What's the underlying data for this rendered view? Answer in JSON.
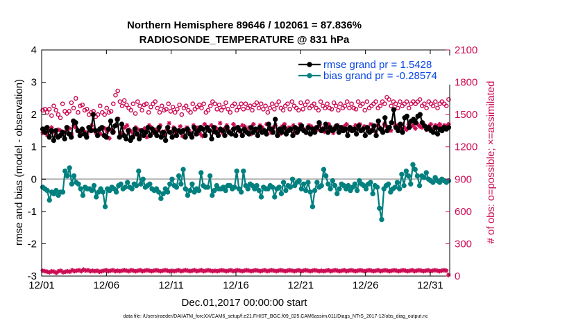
{
  "chart_data": {
    "type": "line",
    "title_line1": "Northern Hemisphere 89646 / 102061 = 87.836%",
    "title_line2": "RADIOSONDE_TEMPERATURE @ 831 hPa",
    "xlabel": "Dec.01,2017 00:00:00 start",
    "ylabel_left": "rmse and bias (model - observation)",
    "ylabel_right": "# of obs: o=possible; ×=assimilated",
    "footnote": "data file: /Users/raeder/DAI/ATM_forcXX/CAM6_setup/f.e21.FHIST_BGC.f09_025.CAM6assim.011/Diags_NTrS_2017-12/obs_diag_output.nc",
    "xlim": [
      0,
      31.5
    ],
    "ylim_left": [
      -3,
      4
    ],
    "ylim_right": [
      0,
      2100
    ],
    "x_tick_values": [
      0,
      5,
      10,
      15,
      20,
      25,
      30
    ],
    "x_tick_labels": [
      "12/01",
      "12/06",
      "12/11",
      "12/16",
      "12/21",
      "12/26",
      "12/31"
    ],
    "y_left_ticks": [
      "-3",
      "-2",
      "-1",
      "0",
      "1",
      "2",
      "3",
      "4"
    ],
    "y_right_ticks": [
      "0",
      "300",
      "600",
      "900",
      "1200",
      "1500",
      "1800",
      "2100"
    ],
    "colors": {
      "rmse": "#000000",
      "bias": "#00807f",
      "obs": "#cc0a52",
      "zero_line": "#b3b3b3",
      "legend_text": "#0a46e6"
    },
    "series": [
      {
        "name": "rmse grand pr = 1.5428",
        "axis": "left",
        "marker": "filled-circle",
        "values": [
          1.55,
          1.45,
          1.6,
          1.3,
          1.5,
          1.2,
          1.5,
          1.3,
          1.35,
          1.45,
          1.25,
          1.6,
          1.4,
          1.3,
          1.8,
          1.75,
          1.5,
          1.35,
          1.55,
          1.4,
          1.3,
          1.6,
          1.5,
          2.0,
          1.5,
          1.35,
          1.55,
          1.6,
          1.35,
          1.3,
          1.55,
          1.8,
          1.45,
          1.65,
          1.85,
          1.3,
          1.7,
          1.35,
          1.25,
          1.5,
          1.2,
          1.3,
          1.55,
          1.4,
          1.25,
          1.5,
          1.35,
          1.45,
          1.6,
          1.35,
          1.55,
          1.45,
          1.35,
          1.6,
          1.3,
          1.45,
          1.2,
          1.6,
          1.45,
          1.3,
          1.55,
          1.35,
          1.5,
          1.45,
          1.5,
          1.3,
          1.55,
          1.4,
          1.3,
          1.6,
          1.4,
          1.5,
          1.6,
          1.55,
          1.35,
          1.6,
          1.5,
          1.25,
          1.6,
          1.45,
          1.35,
          1.55,
          1.5,
          1.35,
          1.6,
          1.45,
          1.4,
          1.55,
          1.35,
          1.6,
          1.5,
          1.35,
          1.55,
          1.45,
          1.4,
          1.6,
          1.45,
          1.55,
          1.35,
          1.6,
          1.45,
          1.5,
          1.4,
          1.7,
          1.55,
          1.45,
          1.85,
          1.35,
          1.55,
          1.45,
          1.6,
          1.4,
          1.5,
          1.55,
          1.35,
          1.6,
          1.45,
          1.55,
          1.65,
          1.5,
          1.45,
          1.6,
          1.4,
          1.55,
          1.45,
          1.6,
          1.75,
          1.5,
          1.55,
          1.7,
          1.45,
          1.6,
          1.5,
          1.55,
          1.65,
          1.45,
          1.6,
          1.5,
          1.55,
          1.35,
          1.6,
          1.5,
          1.55,
          1.4,
          1.65,
          1.5,
          1.55,
          1.35,
          1.6,
          1.45,
          1.5,
          1.65,
          1.35,
          1.8,
          1.55,
          1.45,
          1.9,
          1.5,
          1.6,
          1.75,
          2.15,
          1.6,
          1.5,
          1.7,
          1.45,
          1.9,
          1.95,
          1.6,
          1.8,
          1.85,
          1.75,
          1.95,
          2.0,
          1.75,
          1.65,
          1.55,
          1.6,
          1.5,
          1.45,
          1.6,
          1.4,
          1.55,
          1.5,
          1.6,
          1.55,
          1.6
        ]
      },
      {
        "name": "bias grand pr = -0.28574",
        "axis": "left",
        "marker": "filled-circle",
        "values": [
          -0.25,
          -0.3,
          -0.35,
          -0.65,
          -0.4,
          -0.45,
          -0.35,
          -0.5,
          -0.4,
          -0.4,
          0.25,
          0.1,
          0.35,
          -0.15,
          0.1,
          -0.1,
          -0.15,
          -0.3,
          -0.5,
          -0.25,
          -0.3,
          -0.3,
          -0.35,
          -0.2,
          -0.55,
          -0.4,
          -0.3,
          -0.4,
          -0.85,
          -0.3,
          -0.35,
          -0.25,
          -0.3,
          -0.4,
          -0.2,
          -0.15,
          -0.3,
          -0.25,
          -0.1,
          -0.25,
          -0.3,
          -0.15,
          -0.2,
          0.25,
          -0.15,
          0.0,
          -0.25,
          -0.2,
          -0.15,
          -0.3,
          -0.35,
          -0.3,
          -0.4,
          -0.6,
          -0.45,
          -0.3,
          -0.4,
          -0.15,
          0.0,
          -0.2,
          -0.25,
          0.1,
          -0.15,
          0.3,
          -0.3,
          -0.5,
          -0.35,
          -0.15,
          -0.4,
          -0.3,
          -0.35,
          0.2,
          -0.2,
          -0.25,
          -0.25,
          0.1,
          -0.5,
          -0.35,
          -0.2,
          -0.3,
          -0.3,
          -0.25,
          -0.35,
          -0.2,
          -0.2,
          -0.3,
          -0.25,
          0.25,
          -0.3,
          -0.4,
          0.25,
          -0.2,
          -0.3,
          -0.15,
          -0.2,
          -0.3,
          -0.2,
          -0.35,
          -0.55,
          -0.25,
          -0.3,
          -0.3,
          -0.2,
          -0.25,
          -0.55,
          -0.3,
          -0.25,
          -0.45,
          -0.1,
          -0.35,
          -0.2,
          -0.25,
          0.0,
          -0.2,
          -0.1,
          -0.05,
          -0.3,
          -0.15,
          -0.35,
          -0.1,
          -0.4,
          -0.85,
          -0.35,
          -0.1,
          -0.25,
          -0.2,
          0.3,
          0.1,
          -0.15,
          -0.3,
          -0.05,
          -0.2,
          -0.45,
          -0.3,
          -0.15,
          -0.2,
          -0.3,
          -0.2,
          -0.35,
          -0.25,
          -0.15,
          -0.35,
          -0.05,
          -0.15,
          -0.2,
          -0.3,
          -0.15,
          -0.1,
          -0.45,
          -0.2,
          -0.25,
          -0.9,
          -1.25,
          -0.3,
          -0.2,
          -0.15,
          -0.4,
          -0.3,
          -0.25,
          -0.1,
          -0.3,
          0.15,
          -0.2,
          0.25,
          0.1,
          -0.15,
          0.45,
          0.3,
          0.1,
          -0.2,
          0.1,
          0.05,
          0.2,
          0.0,
          -0.05,
          -0.1,
          0.05,
          -0.05,
          -0.1,
          0.0,
          -0.05,
          -0.1,
          -0.05
        ]
      },
      {
        "name": "possible obs",
        "axis": "right",
        "marker": "open-circle",
        "values": [
          1540,
          1550,
          1520,
          1550,
          1490,
          1580,
          1540,
          1500,
          1470,
          1600,
          1530,
          1510,
          1530,
          1610,
          1560,
          1650,
          1520,
          1580,
          1590,
          1540,
          1550,
          1500,
          1520,
          1530,
          1480,
          1500,
          1580,
          1520,
          1500,
          1560,
          1520,
          1530,
          1600,
          1680,
          1720,
          1620,
          1580,
          1630,
          1590,
          1560,
          1540,
          1600,
          1510,
          1620,
          1580,
          1540,
          1590,
          1600,
          1520,
          1570,
          1600,
          1620,
          1560,
          1520,
          1580,
          1540,
          1550,
          1600,
          1530,
          1570,
          1520,
          1550,
          1590,
          1500,
          1560,
          1580,
          1540,
          1520,
          1600,
          1550,
          1570,
          1590,
          1560,
          1600,
          1520,
          1540,
          1580,
          1620,
          1600,
          1550,
          1590,
          1540,
          1570,
          1610,
          1550,
          1520,
          1580,
          1600,
          1540,
          1570,
          1600,
          1550,
          1600,
          1560,
          1580,
          1540,
          1590,
          1610,
          1560,
          1600,
          1550,
          1580,
          1520,
          1560,
          1600,
          1550,
          1590,
          1620,
          1560,
          1540,
          1580,
          1600,
          1550,
          1620,
          1580,
          1560,
          1540,
          1610,
          1550,
          1590,
          1620,
          1560,
          1580,
          1600,
          1560,
          1540,
          1620,
          1580,
          1560,
          1600,
          1560,
          1550,
          1610,
          1580,
          1540,
          1600,
          1560,
          1580,
          1620,
          1560,
          1600,
          1560,
          1550,
          1620,
          1580,
          1600,
          1540,
          1620,
          1560,
          1580,
          1600,
          1620,
          1560,
          1580,
          1620,
          1600,
          1660,
          1640,
          1580,
          1620,
          1600,
          1560,
          1620,
          1580,
          1600,
          1620,
          1560,
          1600,
          1620,
          1600,
          1620,
          1640,
          1580,
          1600,
          1560,
          1620,
          1600,
          1580,
          1620,
          1560,
          1600,
          1620,
          1600,
          1580,
          1640
        ]
      },
      {
        "name": "assimilated obs",
        "axis": "right",
        "marker": "asterisk",
        "values": [
          1330,
          1370,
          1310,
          1350,
          1380,
          1340,
          1300,
          1360,
          1350,
          1330,
          1340,
          1380,
          1370,
          1320,
          1400,
          1380,
          1350,
          1330,
          1360,
          1340,
          1320,
          1380,
          1400,
          1360,
          1330,
          1350,
          1320,
          1380,
          1370,
          1340,
          1280,
          1360,
          1340,
          1400,
          1460,
          1320,
          1330,
          1380,
          1400,
          1360,
          1340,
          1310,
          1380,
          1360,
          1300,
          1350,
          1370,
          1290,
          1400,
          1380,
          1330,
          1360,
          1350,
          1400,
          1340,
          1310,
          1360,
          1420,
          1340,
          1380,
          1330,
          1350,
          1390,
          1300,
          1360,
          1380,
          1350,
          1330,
          1400,
          1360,
          1380,
          1320,
          1300,
          1410,
          1370,
          1350,
          1400,
          1340,
          1380,
          1360,
          1420,
          1330,
          1370,
          1400,
          1350,
          1320,
          1410,
          1380,
          1360,
          1340,
          1400,
          1390,
          1350,
          1380,
          1320,
          1410,
          1360,
          1350,
          1400,
          1380,
          1340,
          1410,
          1360,
          1330,
          1380,
          1400,
          1350,
          1320,
          1390,
          1410,
          1360,
          1380,
          1350,
          1400,
          1330,
          1370,
          1410,
          1380,
          1360,
          1330,
          1400,
          1390,
          1350,
          1380,
          1360,
          1410,
          1370,
          1340,
          1380,
          1410,
          1360,
          1330,
          1390,
          1400,
          1370,
          1350,
          1390,
          1410,
          1360,
          1380,
          1350,
          1400,
          1370,
          1410,
          1350,
          1390,
          1380,
          1360,
          1410,
          1370,
          1340,
          1400,
          1380,
          1360,
          1410,
          1390,
          1380,
          1350,
          1420,
          1390,
          1400,
          1370,
          1410,
          1380,
          1360,
          1410,
          1390,
          1400,
          1370,
          1410,
          1390,
          1380,
          1400,
          1360,
          1390,
          1410,
          1370,
          1400,
          1390,
          1410,
          1380,
          1400,
          1390,
          1410
        ]
      },
      {
        "name": "assimilated obs (low level)",
        "axis": "right",
        "marker": "asterisk",
        "values": [
          50,
          45,
          40,
          35,
          45,
          40,
          30,
          45,
          50,
          35,
          40,
          45,
          40,
          55,
          45,
          50,
          55,
          45,
          60,
          50,
          55,
          45,
          50,
          45,
          50,
          40,
          45,
          50,
          55,
          45,
          50,
          55,
          45,
          50,
          45,
          50,
          55,
          50,
          45,
          55,
          50,
          45,
          50,
          55,
          45,
          50,
          55,
          50,
          45,
          50,
          55,
          50,
          45,
          50,
          55,
          50,
          45,
          50,
          45,
          50,
          55,
          45,
          50,
          55,
          50,
          45,
          50,
          55,
          45,
          50,
          55,
          45,
          50,
          55,
          50,
          45,
          50,
          45,
          50,
          55,
          50,
          45,
          50,
          55,
          45,
          50,
          55,
          50,
          45,
          50,
          55,
          50,
          45,
          50,
          55,
          50,
          45,
          50,
          55,
          45,
          50,
          55,
          50,
          45,
          50,
          55,
          50,
          45,
          50,
          55,
          50,
          45,
          50,
          55,
          45,
          50,
          55,
          50,
          45,
          50,
          55,
          50,
          45,
          50,
          45,
          50,
          55,
          45,
          50,
          55,
          50,
          45,
          50,
          55,
          45,
          50,
          55,
          50,
          45,
          50,
          55,
          50,
          45,
          50,
          55,
          50,
          45,
          50,
          55,
          45,
          50,
          55,
          50,
          45,
          50,
          55,
          50,
          45,
          50,
          55,
          50,
          45,
          50,
          55,
          45,
          50,
          55,
          50,
          45,
          50,
          55,
          45,
          50,
          55,
          50,
          45,
          50,
          55,
          50,
          10
        ]
      }
    ],
    "legend": [
      {
        "label": "rmse grand pr = 1.5428",
        "series": 0
      },
      {
        "label": "bias grand pr = -0.28574",
        "series": 1
      }
    ]
  }
}
